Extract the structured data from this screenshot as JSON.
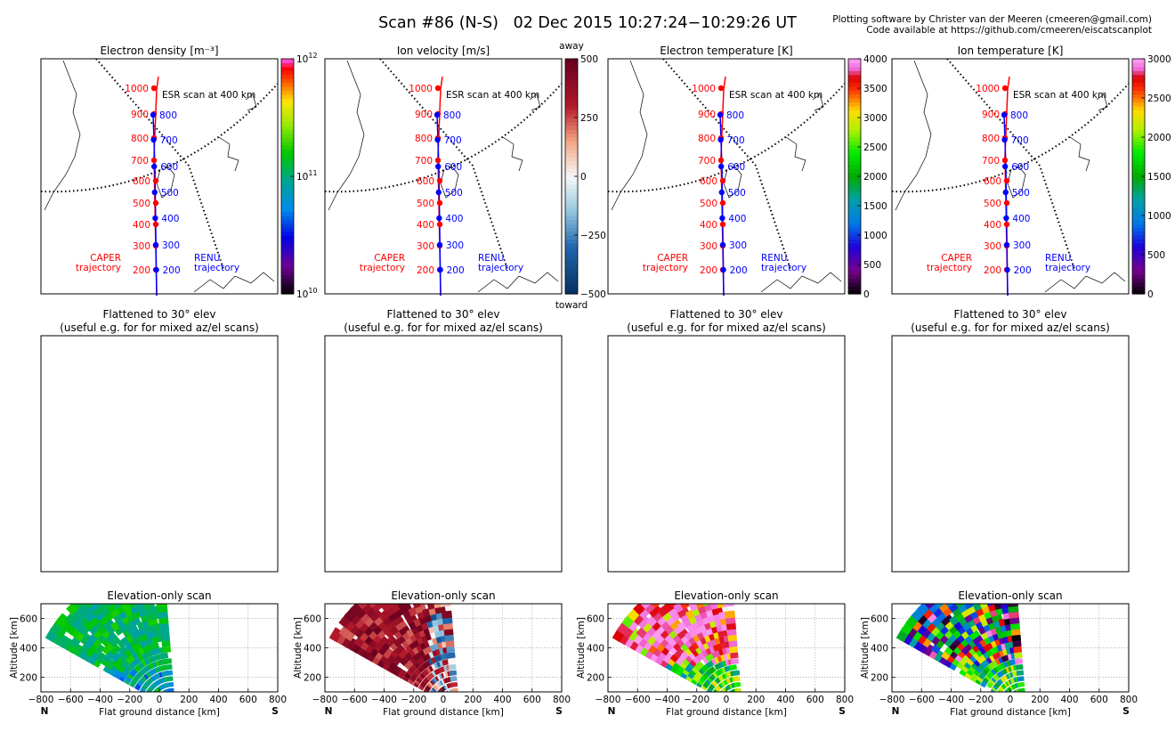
{
  "header": {
    "title": "Scan #86 (N-S)   02 Dec 2015 10:27:24−10:29:26 UT",
    "credit_line1": "Plotting software by Christer van der Meeren (cmeeren@gmail.com)",
    "credit_line2": "Code available at https://github.com/cmeeren/eiscatscanplot"
  },
  "panels": [
    {
      "id": "ne",
      "map_title": "Electron density [m⁻³]",
      "colormap": "rainbow",
      "colorbar": {
        "scale": "log",
        "range": [
          10000000000.0,
          1000000000000.0
        ],
        "ticks": [
          {
            "v": 10000000000.0,
            "base": "10",
            "exp": "10"
          },
          {
            "v": 100000000000.0,
            "base": "10",
            "exp": "11"
          },
          {
            "v": 1000000000000.0,
            "base": "10",
            "exp": "12"
          }
        ],
        "top_label": "",
        "bottom_label": ""
      }
    },
    {
      "id": "vi",
      "map_title": "Ion velocity [m/s]",
      "colormap": "diverging",
      "colorbar": {
        "scale": "linear",
        "range": [
          -500,
          500
        ],
        "ticks": [
          {
            "v": 500,
            "label": "500"
          },
          {
            "v": 250,
            "label": "250"
          },
          {
            "v": 0,
            "label": "0"
          },
          {
            "v": -250,
            "label": "−250"
          },
          {
            "v": -500,
            "label": "−500"
          }
        ],
        "top_label": "away",
        "bottom_label": "toward"
      }
    },
    {
      "id": "te",
      "map_title": "Electron temperature [K]",
      "colormap": "spectral",
      "colorbar": {
        "scale": "linear",
        "range": [
          0,
          4000
        ],
        "ticks": [
          {
            "v": 4000,
            "label": "4000"
          },
          {
            "v": 3500,
            "label": "3500"
          },
          {
            "v": 3000,
            "label": "3000"
          },
          {
            "v": 2500,
            "label": "2500"
          },
          {
            "v": 2000,
            "label": "2000"
          },
          {
            "v": 1500,
            "label": "1500"
          },
          {
            "v": 1000,
            "label": "1000"
          },
          {
            "v": 500,
            "label": "500"
          },
          {
            "v": 0,
            "label": "0"
          }
        ],
        "top_label": "",
        "bottom_label": ""
      }
    },
    {
      "id": "ti",
      "map_title": "Ion temperature [K]",
      "colormap": "spectral",
      "colorbar": {
        "scale": "linear",
        "range": [
          0,
          3000
        ],
        "ticks": [
          {
            "v": 3000,
            "label": "3000"
          },
          {
            "v": 2500,
            "label": "2500"
          },
          {
            "v": 2000,
            "label": "2000"
          },
          {
            "v": 1500,
            "label": "1500"
          },
          {
            "v": 1000,
            "label": "1000"
          },
          {
            "v": 500,
            "label": "500"
          },
          {
            "v": 0,
            "label": "0"
          }
        ],
        "top_label": "",
        "bottom_label": ""
      }
    }
  ],
  "map": {
    "esr_label": "ESR scan at 400 km",
    "caper_label": [
      "CAPER",
      "trajectory"
    ],
    "renu_label": [
      "RENU",
      "trajectory"
    ],
    "caper_markers": [
      "1000",
      "900",
      "800",
      "700",
      "600",
      "500",
      "400",
      "300",
      "200"
    ],
    "renu_markers": [
      "800",
      "700",
      "600",
      "500",
      "400",
      "300",
      "200"
    ],
    "caper_color": "#ff0000",
    "renu_color": "#0000ff"
  },
  "flattened": {
    "title_line1": "Flattened to 30° elev",
    "title_line2": "(useful e.g. for for mixed az/el scans)"
  },
  "chart_data": {
    "type": "heatmap",
    "title": "Elevation-only scan",
    "xlabel": "Flat ground distance [km]",
    "ylabel": "Altitude [km]",
    "xlim": [
      -800,
      800
    ],
    "ylim": [
      100,
      700
    ],
    "xticks": [
      -800,
      -600,
      -400,
      -200,
      0,
      200,
      400,
      600,
      800
    ],
    "xtick_labels": [
      "−800",
      "−600",
      "−400",
      "−200",
      "0",
      "200",
      "400",
      "600",
      "800"
    ],
    "yticks": [
      200,
      400,
      600
    ],
    "ytick_labels": [
      "200",
      "400",
      "600"
    ],
    "grid": true,
    "corner_left": "N",
    "corner_right": "S",
    "scan_geometry": {
      "elevation_range_deg": [
        31,
        84
      ],
      "beams": 16,
      "range_gates_km": [
        110,
        950
      ],
      "gates": 22
    }
  }
}
